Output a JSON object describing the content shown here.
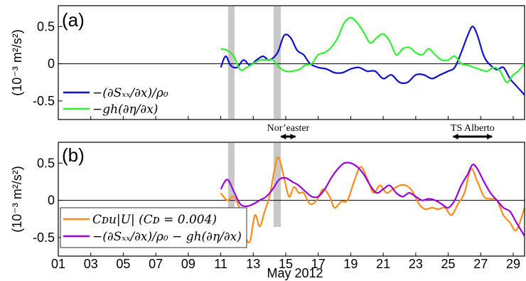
{
  "chart_data": [
    {
      "type": "line",
      "panel_label": "(a)",
      "ylabel": "(10⁻³ m²/s²)",
      "ylim": [
        -0.75,
        0.78
      ],
      "xlim": [
        11,
        29.7
      ],
      "yticks": [
        -0.5,
        0,
        0.5
      ],
      "ytick_labels": [
        "-0.5",
        "0",
        "0.5"
      ],
      "shaded_intervals": [
        [
          11.45,
          11.85
        ],
        [
          14.25,
          14.7
        ]
      ],
      "legend_position": "bottom-left",
      "series": [
        {
          "name": "−(∂Sₓₓ/∂x)/ρ₀",
          "color": "#1010d0",
          "x": [
            11,
            11.3,
            11.6,
            12,
            12.4,
            12.8,
            13.2,
            13.6,
            14,
            14.5,
            14.9,
            15.3,
            15.7,
            16.1,
            16.5,
            17,
            17.5,
            18,
            18.5,
            19,
            19.5,
            20,
            20.5,
            21,
            21.5,
            22,
            22.5,
            23,
            23.5,
            24,
            24.5,
            25,
            25.4,
            25.8,
            26.2,
            26.5,
            26.8,
            27.2,
            27.6,
            28,
            28.4,
            28.8,
            29.2,
            29.7
          ],
          "y": [
            -0.05,
            0.1,
            -0.02,
            -0.05,
            0.05,
            -0.02,
            0.05,
            0.1,
            0.05,
            0.15,
            0.38,
            0.35,
            0.18,
            0.12,
            0.0,
            -0.05,
            -0.07,
            -0.12,
            -0.12,
            -0.07,
            -0.05,
            -0.1,
            -0.1,
            -0.2,
            -0.15,
            -0.25,
            -0.25,
            -0.15,
            -0.15,
            -0.2,
            -0.15,
            -0.1,
            -0.05,
            0.15,
            0.38,
            0.5,
            0.38,
            0.1,
            -0.02,
            -0.08,
            -0.05,
            -0.2,
            -0.3,
            -0.42
          ]
        },
        {
          "name": "−gh(∂η/∂x)",
          "color": "#33ee33",
          "x": [
            11,
            11.4,
            11.8,
            12.2,
            12.6,
            13,
            13.4,
            13.8,
            14.2,
            14.6,
            15,
            15.4,
            15.8,
            16.2,
            16.6,
            17,
            17.4,
            17.8,
            18.2,
            18.6,
            19,
            19.4,
            19.8,
            20.2,
            20.6,
            21,
            21.4,
            21.8,
            22.2,
            22.6,
            23,
            23.4,
            23.8,
            24.2,
            24.6,
            25,
            25.4,
            25.8,
            26.2,
            26.6,
            27,
            27.4,
            27.8,
            28.2,
            28.6,
            29,
            29.3,
            29.7
          ],
          "y": [
            0.2,
            0.18,
            0.1,
            -0.08,
            -0.05,
            0.0,
            0.05,
            0.05,
            0.05,
            -0.05,
            -0.1,
            -0.1,
            -0.08,
            -0.02,
            0.0,
            0.12,
            0.15,
            0.22,
            0.35,
            0.55,
            0.62,
            0.55,
            0.42,
            0.28,
            0.35,
            0.4,
            0.3,
            0.12,
            0.2,
            0.22,
            0.15,
            0.12,
            0.2,
            0.12,
            0.05,
            0.05,
            0.1,
            0.0,
            -0.02,
            -0.05,
            -0.08,
            -0.1,
            -0.05,
            -0.1,
            -0.25,
            -0.15,
            -0.1,
            0.0
          ]
        }
      ]
    },
    {
      "type": "line",
      "panel_label": "(b)",
      "ylabel": "(10⁻³ m²/s²)",
      "ylim": [
        -0.75,
        0.78
      ],
      "xlim": [
        11,
        29.7
      ],
      "yticks": [
        -0.5,
        0,
        0.5
      ],
      "ytick_labels": [
        "-0.5",
        "0",
        "0.5"
      ],
      "shaded_intervals": [
        [
          11.45,
          11.85
        ],
        [
          14.25,
          14.7
        ]
      ],
      "legend_position": "bottom-left",
      "series": [
        {
          "name": "Cᴅu|U| (Cᴅ = 0.004)",
          "color": "#ff8c1a",
          "x": [
            11,
            11.4,
            11.8,
            12.2,
            12.5,
            12.8,
            13.1,
            13.4,
            13.7,
            14.0,
            14.3,
            14.55,
            14.9,
            15.2,
            15.5,
            15.8,
            16.1,
            16.5,
            16.9,
            17.3,
            17.7,
            18.0,
            18.4,
            18.8,
            19.2,
            19.6,
            20.0,
            20.4,
            20.8,
            21.2,
            21.6,
            22.0,
            22.4,
            22.8,
            23.2,
            23.6,
            24.0,
            24.4,
            24.8,
            25.2,
            25.6,
            26.0,
            26.4,
            26.8,
            27.2,
            27.6,
            28.0,
            28.4,
            28.8,
            29.2,
            29.7
          ],
          "y": [
            0.1,
            0.0,
            0.05,
            -0.15,
            -0.48,
            -0.55,
            -0.2,
            -0.35,
            -0.15,
            0.05,
            0.4,
            0.58,
            0.3,
            0.05,
            0.18,
            0.1,
            0.1,
            -0.05,
            0.0,
            0.15,
            0.05,
            -0.1,
            -0.02,
            0.0,
            0.25,
            0.45,
            0.3,
            0.1,
            0.2,
            0.1,
            0.15,
            0.2,
            0.2,
            0.12,
            -0.05,
            -0.12,
            -0.1,
            -0.12,
            -0.1,
            -0.2,
            -0.05,
            0.1,
            0.42,
            0.25,
            0.05,
            0.02,
            0.0,
            -0.2,
            -0.3,
            -0.4,
            -0.1
          ]
        },
        {
          "name": "−(∂Sₓₓ/∂x)/ρ₀ − gh(∂η/∂x)",
          "color": "#9900dd",
          "x": [
            11,
            11.4,
            11.8,
            12.2,
            12.6,
            13,
            13.4,
            13.8,
            14.2,
            14.6,
            15,
            15.4,
            15.8,
            16.2,
            16.6,
            17,
            17.4,
            17.8,
            18.2,
            18.6,
            19,
            19.4,
            19.8,
            20.2,
            20.6,
            21,
            21.4,
            21.8,
            22.2,
            22.6,
            23,
            23.4,
            23.8,
            24.2,
            24.6,
            25,
            25.4,
            25.8,
            26.2,
            26.5,
            26.8,
            27.2,
            27.6,
            28,
            28.4,
            28.8,
            29.2,
            29.7
          ],
          "y": [
            0.15,
            0.28,
            0.12,
            -0.05,
            -0.08,
            -0.05,
            0.0,
            0.05,
            0.15,
            0.28,
            0.3,
            0.25,
            0.2,
            0.12,
            0.05,
            0.05,
            0.15,
            0.3,
            0.42,
            0.5,
            0.5,
            0.45,
            0.35,
            0.2,
            0.1,
            0.15,
            0.2,
            0.1,
            0.05,
            0.1,
            0.05,
            0.0,
            0.02,
            0.0,
            -0.05,
            -0.1,
            0.0,
            0.2,
            0.35,
            0.48,
            0.42,
            0.25,
            0.1,
            0.0,
            -0.1,
            -0.15,
            -0.3,
            -0.48
          ]
        }
      ]
    }
  ],
  "x_axis": {
    "label": "May 2012",
    "range": [
      1,
      29.7
    ],
    "tick_labels": [
      "01",
      "03",
      "05",
      "07",
      "09",
      "11",
      "13",
      "15",
      "17",
      "19",
      "21",
      "23",
      "25",
      "27",
      "29"
    ],
    "tick_values": [
      1,
      3,
      5,
      7,
      9,
      11,
      13,
      15,
      17,
      19,
      21,
      23,
      25,
      27,
      29
    ]
  },
  "events": [
    {
      "label": "Nor’easter",
      "start": 14.4,
      "end": 15.9
    },
    {
      "label": "TS Alberto",
      "start": 25.0,
      "end": 28.0
    }
  ],
  "legend_a": {
    "item1": "−(∂Sₓₓ/∂x)/ρ₀",
    "item2": "−gh(∂η/∂x)"
  },
  "legend_b": {
    "item1": "Cᴅu|U| (Cᴅ = 0.004)",
    "item2": "−(∂Sₓₓ/∂x)/ρ₀ − gh(∂η/∂x)"
  }
}
